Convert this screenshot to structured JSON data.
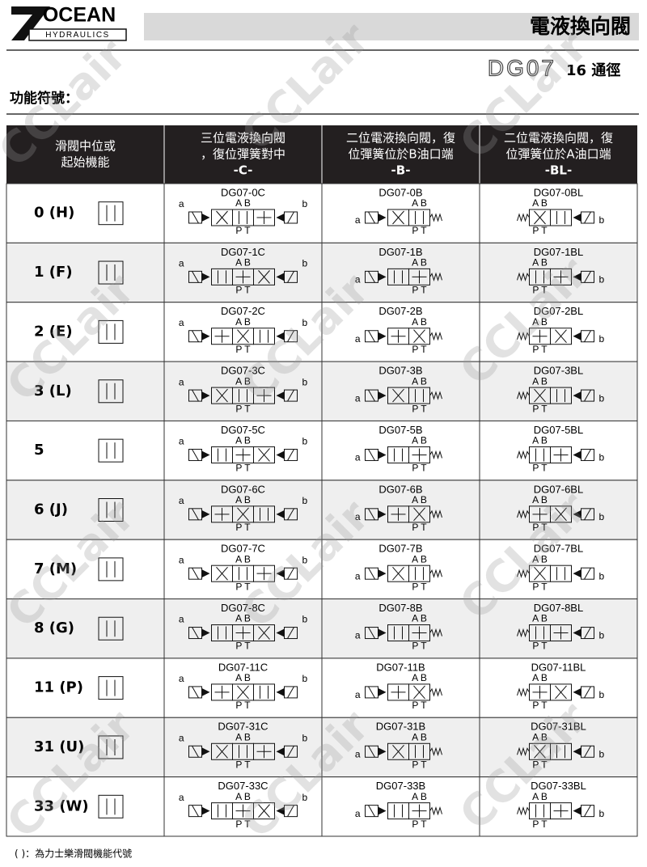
{
  "header": {
    "logo": "OCEAN",
    "logo_sub": "HYDRAULICS",
    "title": "電液換向閥",
    "model": "DG07",
    "size": "16 通徑"
  },
  "section_title": "功能符號：",
  "table": {
    "headers": [
      [
        "滑閥中位或",
        "起始機能"
      ],
      [
        "三位電液換向閥",
        "，復位彈簧對中",
        "-C-"
      ],
      [
        "二位電液換向閥，復",
        "位彈簧位於B油口端",
        "-B-"
      ],
      [
        "二位電液換向閥，復",
        "位彈簧位於A油口端",
        "-BL-"
      ]
    ],
    "rows": [
      [
        "0 (H)",
        "DG07-0C",
        "DG07-0B",
        "DG07-0BL"
      ],
      [
        "1 (F)",
        "DG07-1C",
        "DG07-1B",
        "DG07-1BL"
      ],
      [
        "2 (E)",
        "DG07-2C",
        "DG07-2B",
        "DG07-2BL"
      ],
      [
        "3 (L)",
        "DG07-3C",
        "DG07-3B",
        "DG07-3BL"
      ],
      [
        "5",
        "DG07-5C",
        "DG07-5B",
        "DG07-5BL"
      ],
      [
        "6 (J)",
        "DG07-6C",
        "DG07-6B",
        "DG07-6BL"
      ],
      [
        "7 (M)",
        "DG07-7C",
        "DG07-7B",
        "DG07-7BL"
      ],
      [
        "8 (G)",
        "DG07-8C",
        "DG07-8B",
        "DG07-8BL"
      ],
      [
        "11 (P)",
        "DG07-11C",
        "DG07-11B",
        "DG07-11BL"
      ],
      [
        "31 (U)",
        "DG07-31C",
        "DG07-31B",
        "DG07-31BL"
      ],
      [
        "33 (W)",
        "DG07-33C",
        "DG07-33B",
        "DG07-33BL"
      ]
    ]
  },
  "symbol_labels": {
    "a": "a",
    "b": "b",
    "top_ports": "A B",
    "bottom_ports": "P T"
  },
  "footnote": "( )：為力士樂滑閥機能代號",
  "watermark": "CCLair"
}
